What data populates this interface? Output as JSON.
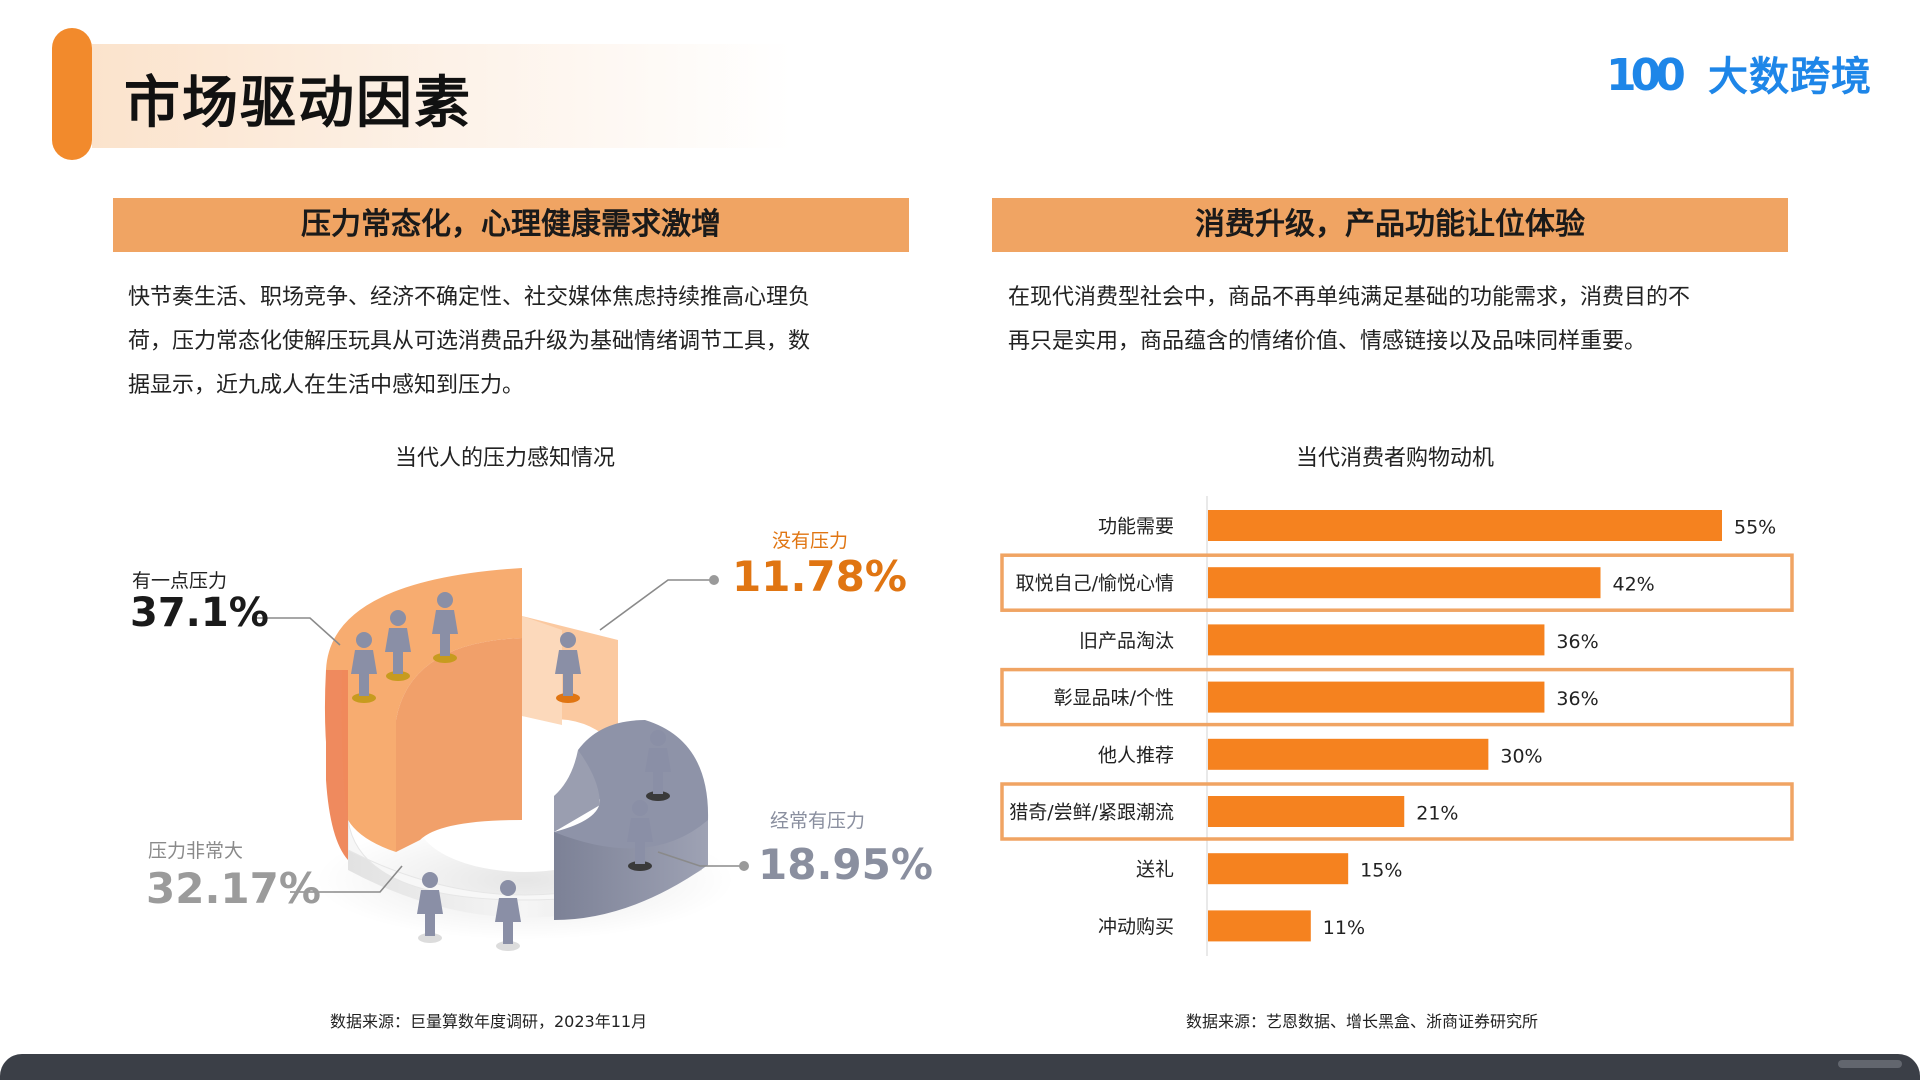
{
  "page": {
    "title": "市场驱动因素",
    "logo_text": "大数跨境",
    "logo_mark": "100"
  },
  "left": {
    "header": "压力常态化，心理健康需求激增",
    "paragraph_lines": [
      "快节奏生活、职场竞争、经济不确定性、社交媒体焦虑持续推高心理负",
      "荷，压力常态化使解压玩具从可选消费品升级为基础情绪调节工具，数",
      "据显示，近九成人在生活中感知到压力。"
    ],
    "source": "数据来源：巨量算数年度调研，2023年11月"
  },
  "right": {
    "header": "消费升级，产品功能让位体验",
    "paragraph_lines": [
      "在现代消费型社会中，商品不再单纯满足基础的功能需求，消费目的不",
      "再只是实用，商品蕴含的情绪价值、情感链接以及品味同样重要。"
    ],
    "source": "数据来源：艺恩数据、增长黑盒、浙商证券研究所"
  },
  "chart_data": [
    {
      "type": "pie",
      "title": "当代人的压力感知情况",
      "slices": [
        {
          "label": "有一点压力",
          "value": 37.1,
          "display": "37.1%",
          "color": "#f6a96b"
        },
        {
          "label": "没有压力",
          "value": 11.78,
          "display": "11.78%",
          "color": "#fbc9a0"
        },
        {
          "label": "经常有压力",
          "value": 18.95,
          "display": "18.95%",
          "color": "#8e93a8"
        },
        {
          "label": "压力非常大",
          "value": 32.17,
          "display": "32.17%",
          "color": "#ffffff"
        }
      ],
      "colors": {
        "value_dark": "#1a1a1a",
        "value_orange": "#e07512",
        "value_grey": "#8a8f9f",
        "value_light": "#9b9b9b",
        "figure": "#8a8fa6"
      }
    },
    {
      "type": "bar",
      "orientation": "horizontal",
      "title": "当代消费者购物动机",
      "categories": [
        "功能需要",
        "取悦自己/愉悦心情",
        "旧产品淘汰",
        "彰显品味/个性",
        "他人推荐",
        "猎奇/尝鲜/紧跟潮流",
        "送礼",
        "冲动购买"
      ],
      "values": [
        55,
        42,
        36,
        36,
        30,
        21,
        15,
        11
      ],
      "labels": [
        "55%",
        "42%",
        "36%",
        "36%",
        "30%",
        "21%",
        "15%",
        "11%"
      ],
      "highlighted": [
        "取悦自己/愉悦心情",
        "彰显品味/个性",
        "猎奇/尝鲜/紧跟潮流"
      ],
      "xlim": [
        0,
        55
      ],
      "bar_color": "#f5821f",
      "highlight_color": "#f0a463"
    }
  ]
}
